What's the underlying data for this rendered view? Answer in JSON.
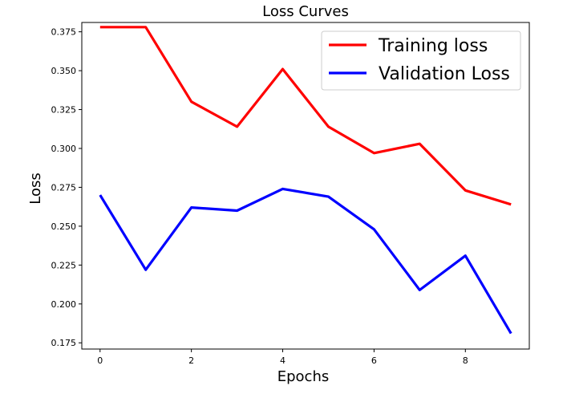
{
  "chart_data": {
    "type": "line",
    "title": "Loss Curves",
    "xlabel": "Epochs",
    "ylabel": "Loss",
    "x": [
      0,
      1,
      2,
      3,
      4,
      5,
      6,
      7,
      8,
      9
    ],
    "xlim": [
      -0.4,
      9.4
    ],
    "ylim": [
      0.171,
      0.381
    ],
    "xticks": [
      0,
      2,
      4,
      6,
      8
    ],
    "yticks": [
      0.175,
      0.2,
      0.225,
      0.25,
      0.275,
      0.3,
      0.325,
      0.35,
      0.375
    ],
    "ytick_labels": [
      "0.175",
      "0.200",
      "0.225",
      "0.250",
      "0.275",
      "0.300",
      "0.325",
      "0.350",
      "0.375"
    ],
    "grid": false,
    "legend_position": "top-right",
    "series": [
      {
        "name": "Training loss",
        "color": "#ff0000",
        "values": [
          0.378,
          0.378,
          0.33,
          0.314,
          0.351,
          0.314,
          0.297,
          0.303,
          0.273,
          0.264
        ]
      },
      {
        "name": "Validation Loss",
        "color": "#0000ff",
        "values": [
          0.27,
          0.222,
          0.262,
          0.26,
          0.274,
          0.269,
          0.248,
          0.209,
          0.231,
          0.181
        ]
      }
    ]
  }
}
